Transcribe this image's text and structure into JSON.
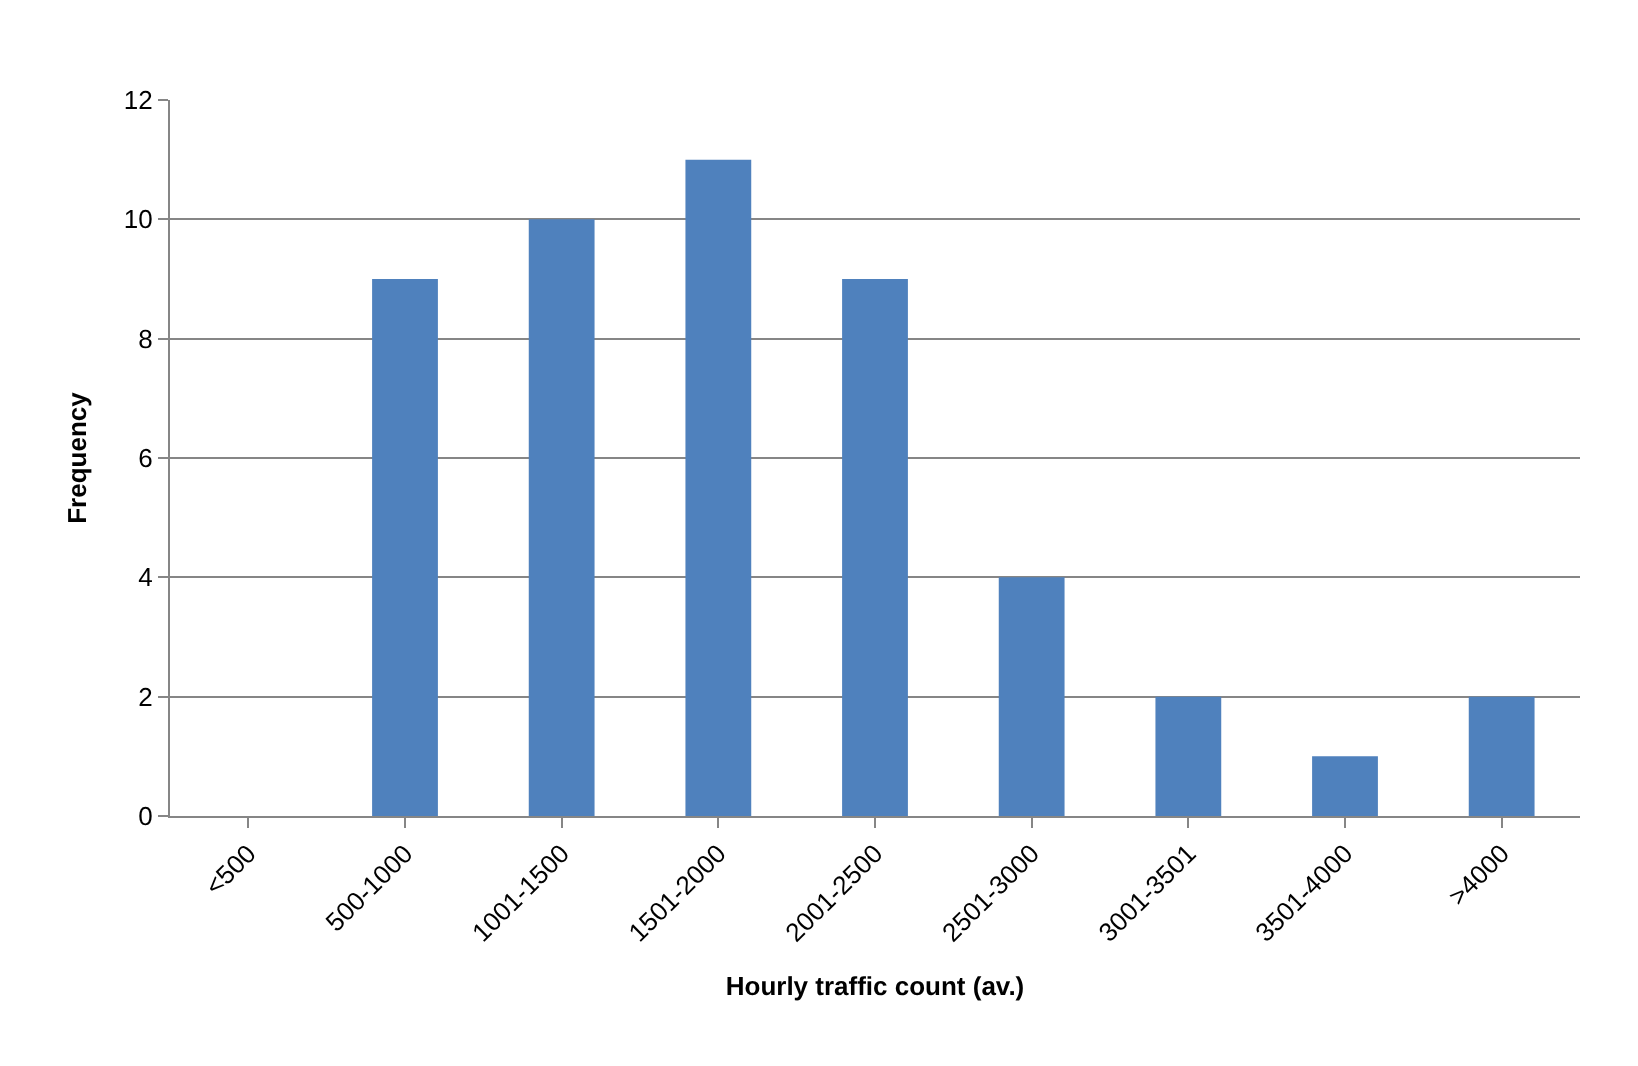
{
  "chart_data": {
    "type": "bar",
    "xlabel": "Hourly traffic count (av.)",
    "ylabel": "Frequency",
    "categories": [
      "<500",
      "500-1000",
      "1001-1500",
      "1501-2000",
      "2001-2500",
      "2501-3000",
      "3001-3501",
      "3501-4000",
      ">4000"
    ],
    "values": [
      0,
      9,
      10,
      11,
      9,
      4,
      2,
      1,
      2
    ],
    "color": "#4f81bd",
    "ylim": [
      0,
      12
    ],
    "yticks": [
      0,
      2,
      4,
      6,
      8,
      10,
      12
    ],
    "grid": "y"
  }
}
